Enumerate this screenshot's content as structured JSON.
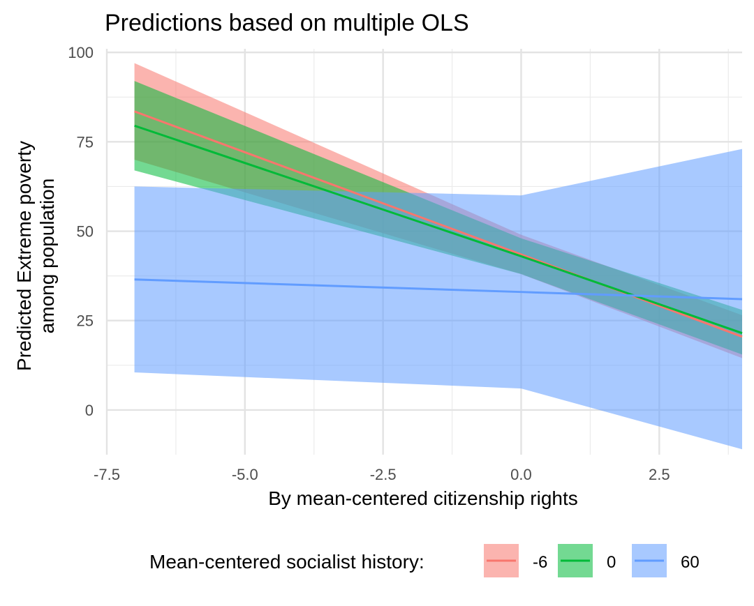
{
  "chart_data": {
    "type": "line",
    "title": "Predictions based on multiple OLS",
    "xlabel": "By mean-centered citizenship rights",
    "ylabel_lines": [
      "Predicted Extreme poverty",
      "among population"
    ],
    "xlim": [
      -7.5,
      4.0
    ],
    "ylim": [
      -12.5,
      101
    ],
    "x_ticks": [
      -7.5,
      -5.0,
      -2.5,
      0.0,
      2.5
    ],
    "x_tick_labels": [
      "-7.5",
      "-5.0",
      "-2.5",
      "0.0",
      "2.5"
    ],
    "y_ticks": [
      0,
      25,
      50,
      75,
      100
    ],
    "y_tick_labels": [
      "0",
      "25",
      "50",
      "75",
      "100"
    ],
    "grid": true,
    "legend_title": "Mean-centered socialist history:",
    "legend_position": "bottom",
    "series": [
      {
        "name": "-6",
        "color": "#F8766D",
        "x": [
          -7,
          0,
          4
        ],
        "fit": [
          83.5,
          43.5,
          20.5
        ],
        "lower": [
          70.0,
          38.0,
          14.5
        ],
        "upper": [
          97.0,
          49.0,
          26.5
        ]
      },
      {
        "name": "0",
        "color": "#00BA38",
        "x": [
          -7,
          0,
          4
        ],
        "fit": [
          79.5,
          43.0,
          21.5
        ],
        "lower": [
          67.0,
          38.0,
          15.5
        ],
        "upper": [
          92.0,
          48.0,
          28.0
        ]
      },
      {
        "name": "60",
        "color": "#619CFF",
        "x": [
          -7,
          0,
          4
        ],
        "fit": [
          36.5,
          33.0,
          31.0
        ],
        "lower": [
          10.5,
          6.0,
          -11.0
        ],
        "upper": [
          62.5,
          60.0,
          73.0
        ]
      }
    ]
  }
}
